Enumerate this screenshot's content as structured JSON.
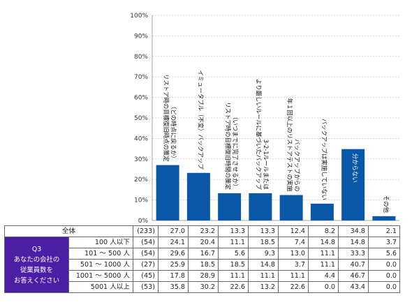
{
  "chart_data": {
    "type": "bar",
    "title": "",
    "xlabel": "",
    "ylabel": "",
    "ylim": [
      0,
      100
    ],
    "y_ticks": [
      "0%",
      "10%",
      "20%",
      "30%",
      "40%",
      "50%",
      "60%",
      "70%",
      "80%",
      "90%",
      "100%"
    ],
    "grid": true,
    "bar_color": "#0a57a8",
    "categories": [
      {
        "lines": [
          "リストア時の目標復旧時点の策定",
          "（どの時点に戻るか）"
        ],
        "inside": false
      },
      {
        "lines": [
          "イミュータブル（不変）バックアップ"
        ],
        "inside": false
      },
      {
        "lines": [
          "リストア時の目標復旧時間の策定",
          "（いつまでに完了させるか）"
        ],
        "inside": false
      },
      {
        "lines": [
          "より厳しいルールに基づいたバックアップ",
          "3-2-1ルールまたは"
        ],
        "inside": false
      },
      {
        "lines": [
          "年１回以上のリストアテストの実施",
          "バックアップからの"
        ],
        "inside": false
      },
      {
        "lines": [
          "バックアップは実施していない"
        ],
        "inside": false
      },
      {
        "lines": [
          "分からない"
        ],
        "inside": true
      },
      {
        "lines": [
          "その他"
        ],
        "inside": false
      }
    ],
    "values": [
      27.0,
      23.2,
      13.3,
      13.3,
      12.4,
      8.2,
      34.8,
      2.1
    ]
  },
  "table": {
    "question_label": "Q3\nあなたの会社の\n従業員数を\nお答えください",
    "total_row": {
      "label": "全体",
      "n": "(233)",
      "values": [
        "27.0",
        "23.2",
        "13.3",
        "13.3",
        "12.4",
        "8.2",
        "34.8",
        "2.1"
      ]
    },
    "rows": [
      {
        "label": "100 人以下",
        "n": "(54)",
        "values": [
          "24.1",
          "20.4",
          "11.1",
          "18.5",
          "7.4",
          "14.8",
          "14.8",
          "3.7"
        ]
      },
      {
        "label": "101 ～ 500 人",
        "n": "(54)",
        "values": [
          "29.6",
          "16.7",
          "5.6",
          "9.3",
          "13.0",
          "11.1",
          "33.3",
          "5.6"
        ]
      },
      {
        "label": "501 ～ 1000 人",
        "n": "(27)",
        "values": [
          "25.9",
          "18.5",
          "18.5",
          "14.8",
          "3.7",
          "11.1",
          "40.7",
          "0.0"
        ]
      },
      {
        "label": "1001 ～ 5000 人",
        "n": "(45)",
        "values": [
          "17.8",
          "28.9",
          "11.1",
          "11.1",
          "11.1",
          "4.4",
          "46.7",
          "0.0"
        ]
      },
      {
        "label": "5001 人以上",
        "n": "(53)",
        "values": [
          "35.8",
          "30.2",
          "22.6",
          "13.2",
          "22.6",
          "0.0",
          "43.4",
          "0.0"
        ]
      }
    ]
  }
}
